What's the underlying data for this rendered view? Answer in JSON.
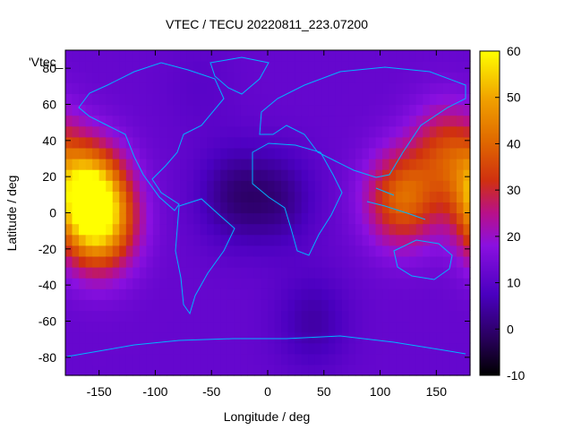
{
  "chart_data": {
    "type": "heatmap",
    "title": "VTEC / TECU 20220811_223.07200",
    "xlabel": "Longitude / deg",
    "ylabel": "Latitude / deg",
    "legend_label": "'Vtec_",
    "xlim": [
      -180,
      180
    ],
    "ylim": [
      -90,
      90
    ],
    "x_ticks": [
      -150,
      -100,
      -50,
      0,
      50,
      100,
      150
    ],
    "y_ticks": [
      -80,
      -60,
      -40,
      -20,
      0,
      20,
      40,
      60,
      80
    ],
    "colorbar": {
      "range": [
        -10,
        60
      ],
      "ticks": [
        -10,
        0,
        10,
        20,
        30,
        40,
        50,
        60
      ],
      "palette": "black-purple-red-orange-yellow"
    },
    "approx_features": [
      {
        "lon": -160,
        "lat": 12,
        "value": 55
      },
      {
        "lon": -150,
        "lat": -8,
        "value": 45
      },
      {
        "lon": 120,
        "lat": 8,
        "value": 40
      },
      {
        "lon": 160,
        "lat": 35,
        "value": 32
      },
      {
        "lon": -30,
        "lat": 10,
        "value": 2
      },
      {
        "lon": 10,
        "lat": 8,
        "value": 3
      },
      {
        "lon": 40,
        "lat": -60,
        "value": 5
      },
      {
        "lon": -60,
        "lat": 70,
        "value": 10
      }
    ],
    "background_value": 12,
    "coastline_color": "#00b4ff"
  }
}
